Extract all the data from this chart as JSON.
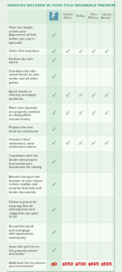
{
  "title": "SERVICES INCLUDED IN YOUR TITLE INSURANCE PREMIUM",
  "title_color": "#3a9a6a",
  "title_bg": "#e8f5ea",
  "columns": [
    "Coldwell\nBanker",
    "RE/Max",
    "Keller\nWilliams",
    "Industry\nAverage"
  ],
  "rows": [
    "Have our lawyer\nreview your\nAgreement of Sale\nbefore you sign it.\n(optional)",
    "Order title insurance",
    "Perform the title\nsearch",
    "Distribute the title\ncommitment to your\nlender and all other\nparties",
    "Assist lender in\nclearing mortgage\nconditions",
    "Make sure deposits\nare properly credited\nat closing/hold\nescrow money",
    "Prepare the new\ndeed for settlement",
    "Schedule final\nsettlement, send\nsettlement notices",
    "Coordinate with the\nlender and prepare\nfinal settlement\ndocuments for closing",
    "Attend closing at the\nlocation of your choice,\nreview, explain and\nnotarize final title and\nlender documents",
    "Disburse proceeds,\nassuring that all\nexisting liens and\njudgments are paid\nin full",
    "Record the deed\nand mortgage\nwith appropriate\nmunicipality",
    "Issue title policies to\nthe property owner\nand lender",
    "Additional fee to process\nyour transaction"
  ],
  "our_checks": [
    true,
    true,
    true,
    true,
    true,
    true,
    true,
    true,
    true,
    true,
    true,
    true,
    true,
    false
  ],
  "other_checks": [
    [
      false,
      false,
      false,
      false
    ],
    [
      true,
      true,
      true,
      true
    ],
    [
      false,
      false,
      false,
      false
    ],
    [
      false,
      false,
      false,
      false
    ],
    [
      true,
      true,
      true,
      true
    ],
    [
      true,
      true,
      true,
      true
    ],
    [
      false,
      false,
      false,
      false
    ],
    [
      true,
      true,
      true,
      true
    ],
    [
      false,
      false,
      false,
      false
    ],
    [
      false,
      false,
      false,
      false
    ],
    [
      false,
      false,
      false,
      false
    ],
    [
      false,
      false,
      false,
      false
    ],
    [
      false,
      false,
      false,
      false
    ],
    [
      false,
      false,
      false,
      false
    ]
  ],
  "fees": [
    "$0",
    "$350",
    "$700",
    "$495",
    "$395"
  ],
  "fee_color": "#cc0000",
  "check_color": "#5a8a5a",
  "our_col_bg": "#c8e6d0",
  "header_bg": "#ddeedd",
  "row_bg_alt": "#eaf4ea",
  "row_bg_main": "#f5fbf5",
  "overall_bg": "#e8f0e8",
  "border_color": "#a0c0a0",
  "text_color": "#333333",
  "col_text_color": "#666666"
}
